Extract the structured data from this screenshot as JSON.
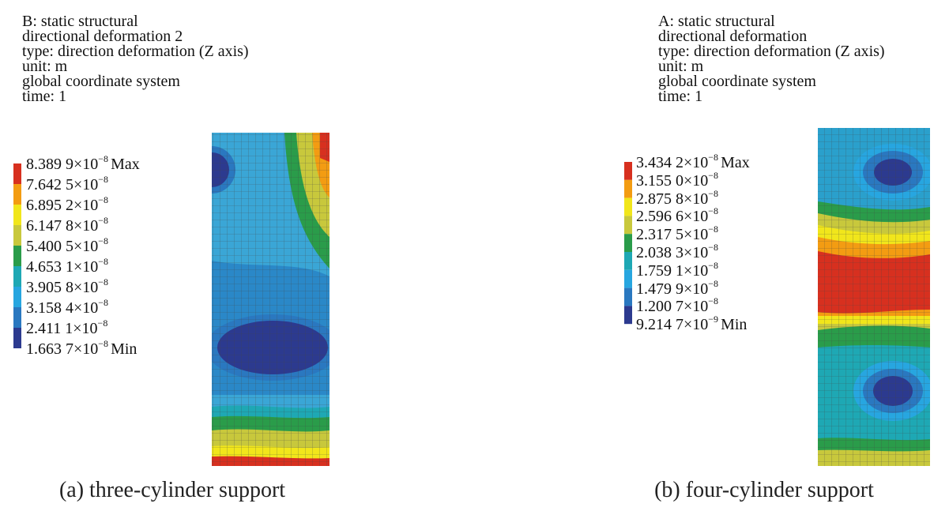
{
  "panels": [
    {
      "header": [
        "B: static structural",
        "directional deformation 2",
        "type: direction deformation (Z axis)",
        "unit: m",
        "global coordinate system",
        "time: 1"
      ],
      "legend": [
        {
          "mantissa": "8.389 9×10",
          "exponent": "−8",
          "note": "Max"
        },
        {
          "mantissa": "7.642 5×10",
          "exponent": "−8"
        },
        {
          "mantissa": "6.895 2×10",
          "exponent": "−8"
        },
        {
          "mantissa": "6.147 8×10",
          "exponent": "−8"
        },
        {
          "mantissa": "5.400 5×10",
          "exponent": "−8"
        },
        {
          "mantissa": "4.653 1×10",
          "exponent": "−8"
        },
        {
          "mantissa": "3.905 8×10",
          "exponent": "−8"
        },
        {
          "mantissa": "3.158 4×10",
          "exponent": "−8"
        },
        {
          "mantissa": "2.411 1×10",
          "exponent": "−8"
        },
        {
          "mantissa": "1.663 7×10",
          "exponent": "−8",
          "note": "Min"
        }
      ],
      "caption": "(a) three-cylinder support"
    },
    {
      "header": [
        "A: static structural",
        "directional deformation",
        "type: direction deformation (Z axis)",
        "unit: m",
        "global coordinate system",
        "time: 1"
      ],
      "legend": [
        {
          "mantissa": "3.434 2×10",
          "exponent": "−8",
          "note": "Max"
        },
        {
          "mantissa": "3.155 0×10",
          "exponent": "−8"
        },
        {
          "mantissa": "2.875 8×10",
          "exponent": "−8"
        },
        {
          "mantissa": "2.596 6×10",
          "exponent": "−8"
        },
        {
          "mantissa": "2.317 5×10",
          "exponent": "−8"
        },
        {
          "mantissa": "2.038 3×10",
          "exponent": "−8"
        },
        {
          "mantissa": "1.759 1×10",
          "exponent": "−8"
        },
        {
          "mantissa": "1.479 9×10",
          "exponent": "−8"
        },
        {
          "mantissa": "1.200 7×10",
          "exponent": "−8"
        },
        {
          "mantissa": "9.214 7×10",
          "exponent": "−9",
          "note": "Min"
        }
      ],
      "caption": "(b) four-cylinder support"
    }
  ]
}
